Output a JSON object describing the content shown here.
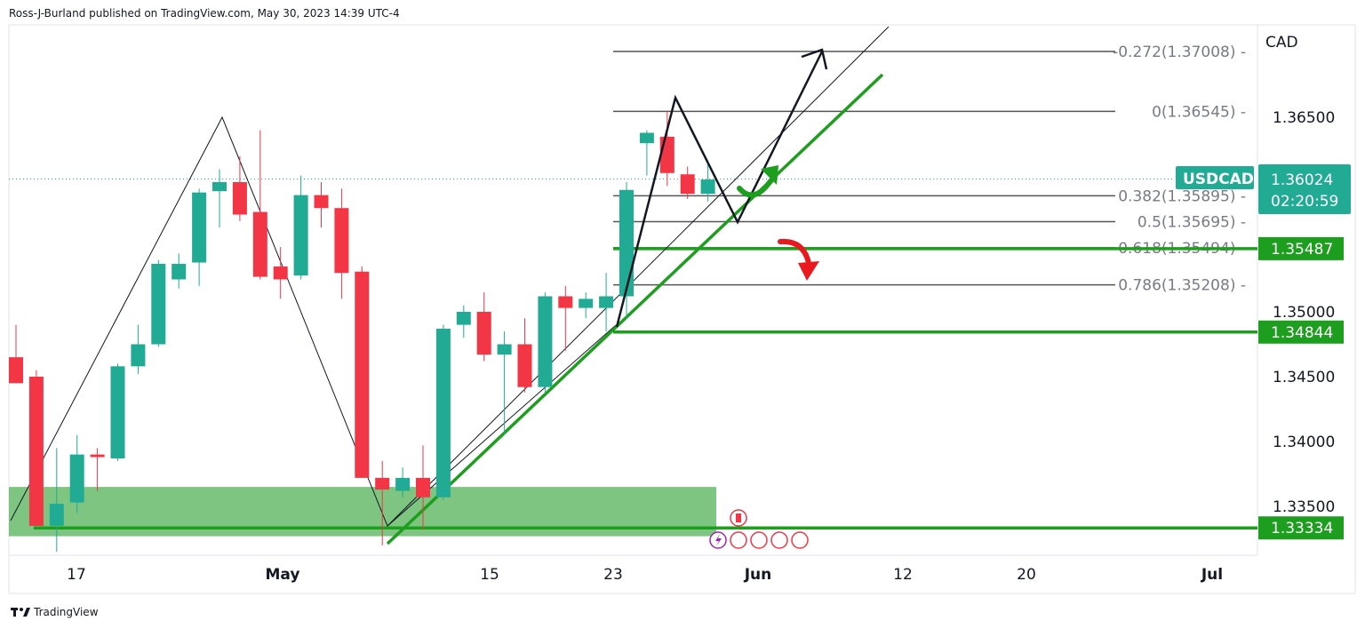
{
  "header": {
    "text": "Ross-J-Burland published on TradingView.com, May 30, 2023 14:39 UTC-4"
  },
  "footer": {
    "brand": "TradingView"
  },
  "colors": {
    "up": "#22ab94",
    "down": "#f23645",
    "trend": "#1e9e1e",
    "zone": "#4caf50",
    "fib": "#555555",
    "arrow_red": "#e8191f",
    "arrow_green": "#1e9e1e"
  },
  "chart_data": {
    "type": "candlestick",
    "symbol": "USDCAD",
    "currency": "CAD",
    "last_price": "1.36024",
    "countdown": "02:20:59",
    "y_ticks": [
      "1.36500",
      "1.35000",
      "1.34500",
      "1.34000",
      "1.33500"
    ],
    "y_tick_values": [
      1.365,
      1.35,
      1.345,
      1.34,
      1.335
    ],
    "x_ticks": [
      "17",
      "May",
      "15",
      "23",
      "Jun",
      "12",
      "20",
      "Jul"
    ],
    "ylim": [
      1.3314,
      1.3721
    ],
    "candles": [
      {
        "x": 0,
        "o": 1.3465,
        "h": 1.349,
        "l": 1.3445,
        "c": 1.3445
      },
      {
        "x": 1,
        "o": 1.345,
        "h": 1.3455,
        "l": 1.3335,
        "c": 1.3335
      },
      {
        "x": 2,
        "o": 1.3335,
        "h": 1.3395,
        "l": 1.3315,
        "c": 1.3352
      },
      {
        "x": 3,
        "o": 1.3353,
        "h": 1.3405,
        "l": 1.3345,
        "c": 1.339
      },
      {
        "x": 4,
        "o": 1.339,
        "h": 1.3395,
        "l": 1.3362,
        "c": 1.3388
      },
      {
        "x": 5,
        "o": 1.3387,
        "h": 1.346,
        "l": 1.3385,
        "c": 1.3458
      },
      {
        "x": 6,
        "o": 1.3458,
        "h": 1.349,
        "l": 1.3452,
        "c": 1.3475
      },
      {
        "x": 7,
        "o": 1.3475,
        "h": 1.354,
        "l": 1.3473,
        "c": 1.3537
      },
      {
        "x": 8,
        "o": 1.3525,
        "h": 1.3545,
        "l": 1.3518,
        "c": 1.3537
      },
      {
        "x": 9,
        "o": 1.3538,
        "h": 1.3595,
        "l": 1.352,
        "c": 1.3592
      },
      {
        "x": 10,
        "o": 1.3593,
        "h": 1.361,
        "l": 1.3565,
        "c": 1.36
      },
      {
        "x": 11,
        "o": 1.36,
        "h": 1.362,
        "l": 1.357,
        "c": 1.3575
      },
      {
        "x": 12,
        "o": 1.3577,
        "h": 1.364,
        "l": 1.3525,
        "c": 1.3527
      },
      {
        "x": 13,
        "o": 1.3535,
        "h": 1.355,
        "l": 1.351,
        "c": 1.3525
      },
      {
        "x": 14,
        "o": 1.3528,
        "h": 1.3605,
        "l": 1.3525,
        "c": 1.359
      },
      {
        "x": 15,
        "o": 1.359,
        "h": 1.36,
        "l": 1.3565,
        "c": 1.358
      },
      {
        "x": 16,
        "o": 1.358,
        "h": 1.3595,
        "l": 1.351,
        "c": 1.353
      },
      {
        "x": 17,
        "o": 1.3531,
        "h": 1.3535,
        "l": 1.3372,
        "c": 1.3372
      },
      {
        "x": 18,
        "o": 1.3372,
        "h": 1.3385,
        "l": 1.332,
        "c": 1.3363
      },
      {
        "x": 19,
        "o": 1.3362,
        "h": 1.338,
        "l": 1.3357,
        "c": 1.3372
      },
      {
        "x": 20,
        "o": 1.3372,
        "h": 1.3397,
        "l": 1.3332,
        "c": 1.3357
      },
      {
        "x": 21,
        "o": 1.3357,
        "h": 1.349,
        "l": 1.3355,
        "c": 1.3487
      },
      {
        "x": 22,
        "o": 1.349,
        "h": 1.3505,
        "l": 1.348,
        "c": 1.35
      },
      {
        "x": 23,
        "o": 1.35,
        "h": 1.3515,
        "l": 1.3462,
        "c": 1.3467
      },
      {
        "x": 24,
        "o": 1.3467,
        "h": 1.3485,
        "l": 1.3405,
        "c": 1.3475
      },
      {
        "x": 25,
        "o": 1.3475,
        "h": 1.3495,
        "l": 1.3438,
        "c": 1.3442
      },
      {
        "x": 26,
        "o": 1.3442,
        "h": 1.3515,
        "l": 1.3437,
        "c": 1.3512
      },
      {
        "x": 27,
        "o": 1.3512,
        "h": 1.352,
        "l": 1.347,
        "c": 1.3503
      },
      {
        "x": 28,
        "o": 1.3503,
        "h": 1.3515,
        "l": 1.3495,
        "c": 1.351
      },
      {
        "x": 29,
        "o": 1.3503,
        "h": 1.353,
        "l": 1.3485,
        "c": 1.3512
      },
      {
        "x": 30,
        "o": 1.3512,
        "h": 1.36,
        "l": 1.3495,
        "c": 1.3594
      },
      {
        "x": 31,
        "o": 1.363,
        "h": 1.364,
        "l": 1.3605,
        "c": 1.3638
      },
      {
        "x": 32,
        "o": 1.3635,
        "h": 1.3655,
        "l": 1.3597,
        "c": 1.3607
      },
      {
        "x": 33,
        "o": 1.3606,
        "h": 1.3612,
        "l": 1.3587,
        "c": 1.3591
      },
      {
        "x": 34,
        "o": 1.3591,
        "h": 1.3615,
        "l": 1.3585,
        "c": 1.3602
      }
    ],
    "fib_levels": [
      {
        "label": "-0.272(1.37008)",
        "value": 1.37008
      },
      {
        "label": "0(1.36545)",
        "value": 1.36545
      },
      {
        "label": "0.382(1.35895)",
        "value": 1.35895
      },
      {
        "label": "0.5(1.35695)",
        "value": 1.35695
      },
      {
        "label": "0.618(1.35494)",
        "value": 1.35494
      },
      {
        "label": "0.786(1.35208)",
        "value": 1.35208
      }
    ],
    "horizontal_levels": [
      {
        "label": "1.35487",
        "value": 1.35487
      },
      {
        "label": "1.34844",
        "value": 1.34844
      },
      {
        "label": "1.33334",
        "value": 1.33334
      }
    ],
    "demand_zone": {
      "top": 1.3365,
      "bottom": 1.3327
    },
    "event_icon_count": {
      "ca": 2,
      "us": 4,
      "lightning": 1
    }
  }
}
